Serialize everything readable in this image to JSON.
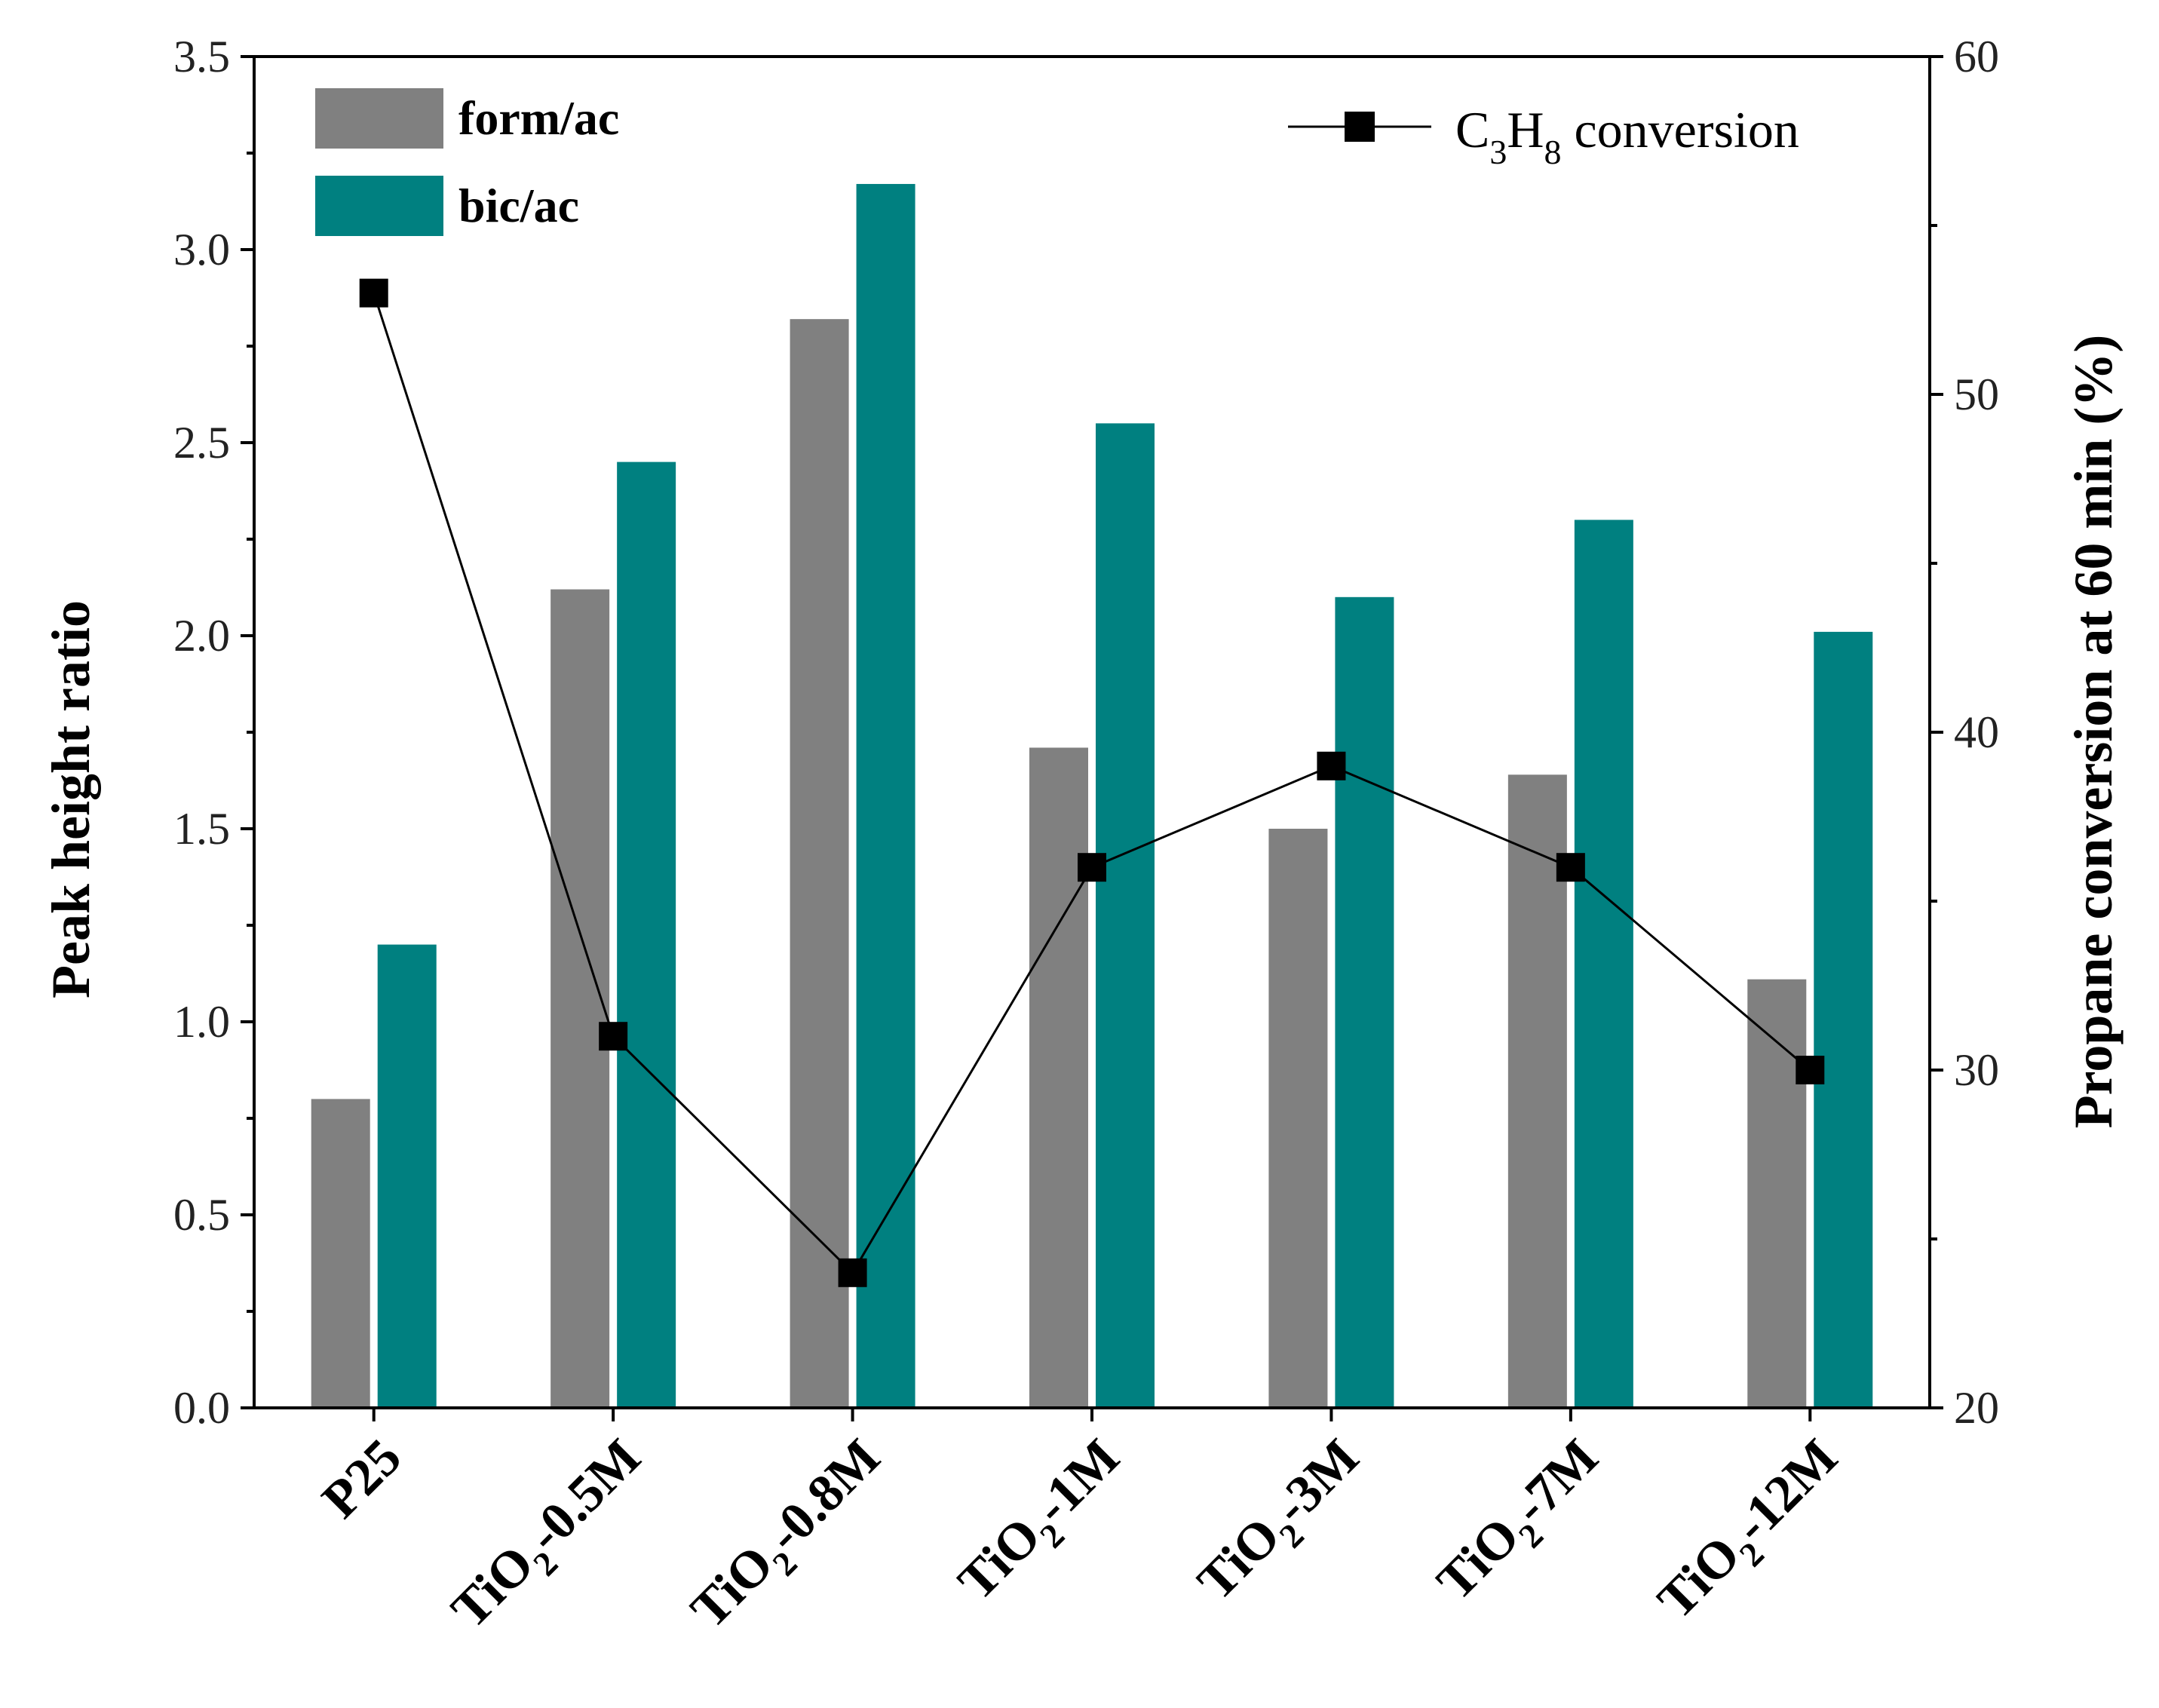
{
  "chart_data": {
    "type": "bar+line",
    "categories": [
      {
        "base": "P25",
        "sub": "",
        "rest": ""
      },
      {
        "base": "TiO",
        "sub": "2",
        "rest": "-0.5M"
      },
      {
        "base": "TiO",
        "sub": "2",
        "rest": "-0.8M"
      },
      {
        "base": "TiO",
        "sub": "2",
        "rest": "-1M"
      },
      {
        "base": "TiO",
        "sub": "2",
        "rest": "-3M"
      },
      {
        "base": "TiO",
        "sub": "2",
        "rest": "-7M"
      },
      {
        "base": "TiO",
        "sub": "2",
        "rest": "-12M"
      }
    ],
    "series": [
      {
        "name": "form/ac",
        "axis": "left",
        "kind": "bar",
        "color": "#808080",
        "values": [
          0.8,
          2.12,
          2.82,
          1.71,
          1.5,
          1.64,
          1.11
        ]
      },
      {
        "name": "bic/ac",
        "axis": "left",
        "kind": "bar",
        "color": "#008080",
        "values": [
          1.2,
          2.45,
          3.17,
          2.55,
          2.1,
          2.3,
          2.01
        ]
      },
      {
        "name": "C3H8 conversion",
        "axis": "right",
        "kind": "line",
        "color": "#000000",
        "values": [
          53,
          31,
          24,
          36,
          39,
          36,
          30
        ]
      }
    ],
    "y_left": {
      "label": "Peak height ratio",
      "lim": [
        0,
        3.5
      ],
      "ticks": [
        "0.0",
        "0.5",
        "1.0",
        "1.5",
        "2.0",
        "2.5",
        "3.0",
        "3.5"
      ]
    },
    "y_right": {
      "label": "Propane conversion at 60 min (%)",
      "lim": [
        20,
        60
      ],
      "ticks": [
        "20",
        "30",
        "40",
        "50",
        "60"
      ]
    },
    "legend": {
      "form": "form/ac",
      "bic": "bic/ac",
      "line_prefix": "C",
      "line_sub1": "3",
      "line_mid": "H",
      "line_sub2": "8",
      "line_suffix": " conversion"
    }
  }
}
